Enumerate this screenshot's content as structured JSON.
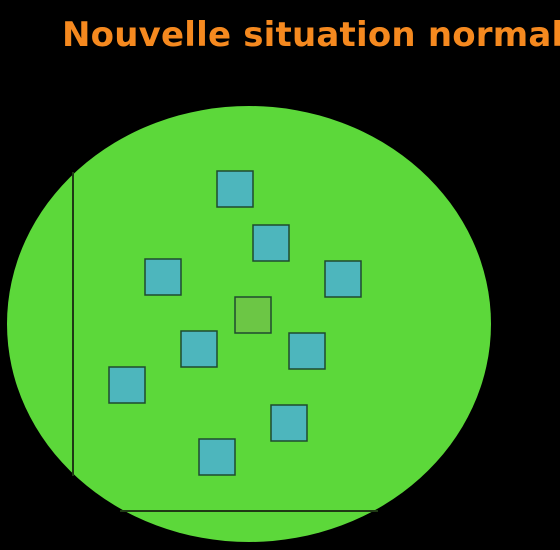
{
  "title": "Nouvelle situation normale",
  "colors": {
    "background": "#000000",
    "title": "#F5891F",
    "region_fill": "#5CD83A",
    "axis": "#1F3A14",
    "square_fill": "#4DB6BD",
    "center_square_fill": "#6CC645",
    "square_stroke": "#1E4A2E"
  },
  "shapes": {
    "squares_count": 9,
    "highlighted_square_count": 1
  }
}
